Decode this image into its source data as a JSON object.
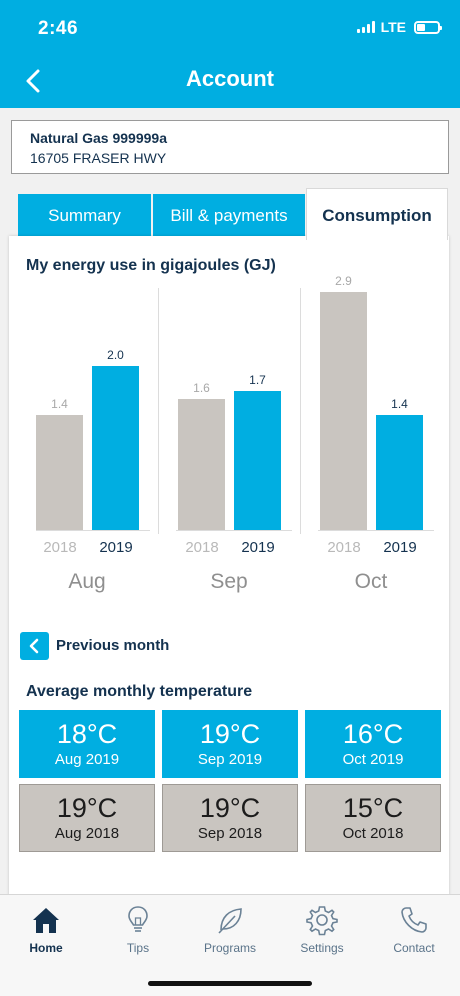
{
  "status_bar": {
    "time": "2:46",
    "network": "LTE"
  },
  "header": {
    "title": "Account",
    "back_icon": "chevron-left-icon"
  },
  "account": {
    "name": "Natural Gas 999999a",
    "address": "16705 FRASER HWY"
  },
  "tabs": [
    {
      "label": "Summary",
      "active": false
    },
    {
      "label": "Bill & payments",
      "active": false
    },
    {
      "label": "Consumption",
      "active": true
    }
  ],
  "consumption": {
    "title": "My energy use in gigajoules (GJ)",
    "previous_month_label": "Previous month",
    "colors": {
      "previous_year": "#c9c5c0",
      "current_year": "#00aee1"
    }
  },
  "chart_data": {
    "type": "bar",
    "title": "My energy use in gigajoules (GJ)",
    "categories": [
      "Aug",
      "Sep",
      "Oct"
    ],
    "series": [
      {
        "name": "2018",
        "values": [
          1.4,
          1.6,
          2.9
        ],
        "color": "#c9c5c0"
      },
      {
        "name": "2019",
        "values": [
          2.0,
          1.7,
          1.4
        ],
        "color": "#00aee1"
      }
    ],
    "value_labels": {
      "2018": [
        "1.4",
        "1.6",
        "2.9"
      ],
      "2019": [
        "2.0",
        "1.7",
        "1.4"
      ]
    },
    "ylim": [
      0,
      3.0
    ],
    "grid": false
  },
  "temperature": {
    "title": "Average monthly temperature",
    "current": [
      {
        "value": "18°C",
        "label": "Aug 2019"
      },
      {
        "value": "19°C",
        "label": "Sep 2019"
      },
      {
        "value": "16°C",
        "label": "Oct 2019"
      }
    ],
    "previous": [
      {
        "value": "19°C",
        "label": "Aug 2018"
      },
      {
        "value": "19°C",
        "label": "Sep 2018"
      },
      {
        "value": "15°C",
        "label": "Oct 2018"
      }
    ]
  },
  "bottom_nav": [
    {
      "label": "Home",
      "icon": "home-icon",
      "active": true
    },
    {
      "label": "Tips",
      "icon": "lightbulb-icon",
      "active": false
    },
    {
      "label": "Programs",
      "icon": "leaf-icon",
      "active": false
    },
    {
      "label": "Settings",
      "icon": "gear-icon",
      "active": false
    },
    {
      "label": "Contact",
      "icon": "phone-icon",
      "active": false
    }
  ]
}
